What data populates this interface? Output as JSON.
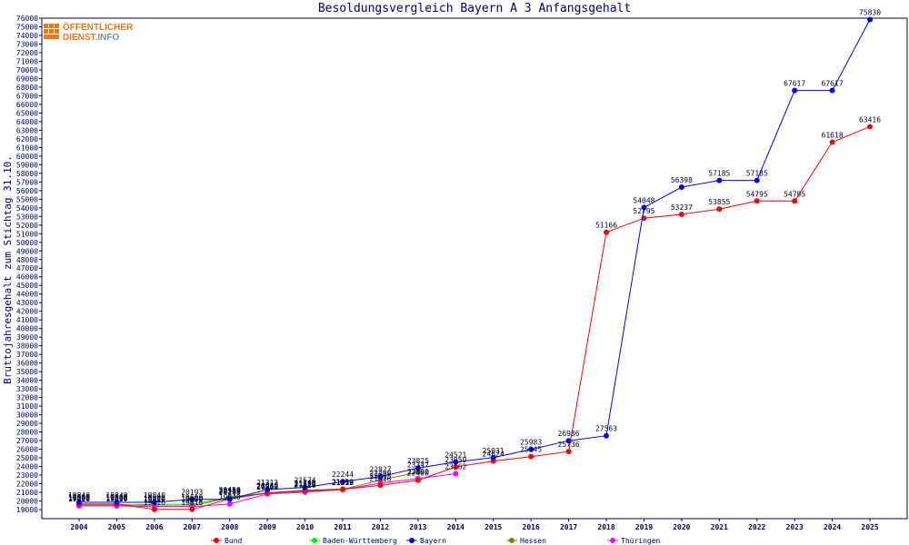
{
  "chart_data": {
    "type": "line",
    "title": "Besoldungsvergleich Bayern A 3 Anfangsgehalt",
    "ylabel": "Bruttojahresgehalt zum Stichtag 31.10.",
    "xlabel": "",
    "categories": [
      "2004",
      "2005",
      "2006",
      "2007",
      "2008",
      "2009",
      "2010",
      "2011",
      "2012",
      "2013",
      "2014",
      "2015",
      "2016",
      "2017",
      "2018",
      "2019",
      "2020",
      "2021",
      "2022",
      "2023",
      "2024",
      "2025"
    ],
    "ylim": [
      19000,
      76000
    ],
    "ytick_step": 1000,
    "grid": false,
    "legend_position": "bottom",
    "series": [
      {
        "name": "Bund",
        "color": "#ff0000",
        "values": [
          19646,
          19646,
          19016,
          19016,
          20238,
          20935,
          21196,
          21339,
          21816,
          22400,
          23950,
          24624,
          25145,
          25736,
          51166,
          52795,
          53237,
          53855,
          54795,
          54795,
          61618,
          63416
        ],
        "labels": [
          "19646",
          "19646",
          "19016",
          "19016",
          "20238",
          "20935",
          "21196",
          "21339",
          "21816",
          "22400",
          "23950",
          "24624",
          "25145",
          "25736",
          "51166",
          "52795",
          "53237",
          "53855",
          "54795",
          "54795",
          "61618",
          "63416"
        ]
      },
      {
        "name": "Baden-Württemberg",
        "color": "#00ee00",
        "values": [
          19500,
          19500,
          19600,
          19600,
          20450,
          20935,
          21260,
          21390,
          null,
          null,
          null,
          null,
          null,
          null,
          null,
          null,
          null,
          null,
          null,
          null,
          null,
          null
        ],
        "labels": [
          "19500",
          "19500",
          "19600",
          "19600",
          "20450",
          "20935",
          "21260",
          "21390",
          "",
          "",
          "",
          "",
          "",
          "",
          "",
          "",
          "",
          "",
          "",
          "",
          "",
          ""
        ]
      },
      {
        "name": "Bayern",
        "color": "#0000ff",
        "values": [
          19840,
          19840,
          19840,
          20193,
          20193,
          21313,
          21574,
          22244,
          22827,
          23825,
          24521,
          25031,
          25983,
          26986,
          27563,
          54048,
          56398,
          57185,
          57185,
          67617,
          67617,
          75830
        ],
        "labels": [
          "19840",
          "19840",
          "19840",
          "20193",
          "20193",
          "21313",
          "21574",
          "22244",
          "22827",
          "23825",
          "24521",
          "25031",
          "25983",
          "26986",
          "27563",
          "54048",
          "56398",
          "57185",
          "57185",
          "67617",
          "67617",
          "75830"
        ]
      },
      {
        "name": "Hessen",
        "color": "#808000",
        "values": [
          19600,
          19600,
          19420,
          19420,
          20380,
          20860,
          21120,
          21350,
          22400,
          23347,
          null,
          null,
          null,
          null,
          null,
          null,
          null,
          null,
          null,
          null,
          null,
          null
        ],
        "labels": [
          "19600",
          "19600",
          "19420",
          "19420",
          "20380",
          "20860",
          "21120",
          "21350",
          "22400",
          "23347",
          "",
          "",
          "",
          "",
          "",
          "",
          "",
          "",
          "",
          "",
          "",
          ""
        ]
      },
      {
        "name": "Thüringen",
        "color": "#ff00ff",
        "values": [
          19420,
          19420,
          19350,
          19350,
          19640,
          20800,
          21010,
          21313,
          22065,
          22590,
          23162,
          null,
          null,
          null,
          null,
          null,
          null,
          null,
          null,
          null,
          null,
          null
        ],
        "labels": [
          "19420",
          "19420",
          "19350",
          "19350",
          "19640",
          "20800",
          "21010",
          "21313",
          "22065",
          "22590",
          "23162",
          "",
          "",
          "",
          "",
          "",
          "",
          "",
          "",
          "",
          "",
          ""
        ]
      }
    ]
  },
  "logo": {
    "line1": "ÖFFENTLICHER",
    "line2a": "DIENST",
    "line2b": ".INFO"
  }
}
